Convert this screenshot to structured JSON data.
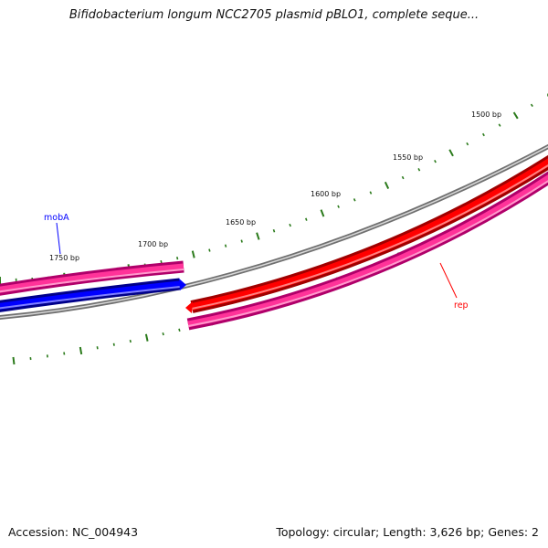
{
  "header": {
    "title": "Bifidobacterium longum NCC2705 plasmid pBLO1, complete seque..."
  },
  "map": {
    "ticks": [
      "1500 bp",
      "1550 bp",
      "1600 bp",
      "1650 bp",
      "1700 bp",
      "1750 bp"
    ],
    "features": [
      {
        "name": "mobA",
        "color": "#0000ff"
      },
      {
        "name": "rep",
        "color": "#ff0000"
      }
    ],
    "colors": {
      "backbone": "#808080",
      "forward_cds": "#ff0000",
      "reverse_cds": "#0000ff",
      "gene_track": "#ff3399",
      "tick": "#2a7a1a"
    }
  },
  "footer": {
    "accession": "Accession: NC_004943",
    "summary": "Topology: circular; Length: 3,626 bp; Genes: 2"
  }
}
